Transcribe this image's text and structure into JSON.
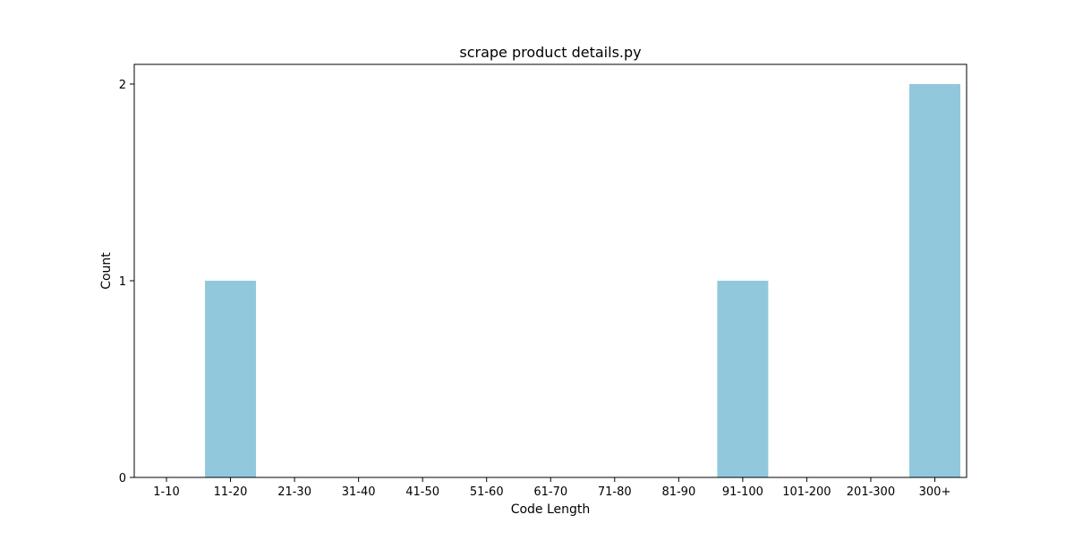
{
  "chart_data": {
    "type": "bar",
    "title": "scrape product details.py",
    "xlabel": "Code Length",
    "ylabel": "Count",
    "categories": [
      "1-10",
      "11-20",
      "21-30",
      "31-40",
      "41-50",
      "51-60",
      "61-70",
      "71-80",
      "81-90",
      "91-100",
      "101-200",
      "201-300",
      "300+"
    ],
    "values": [
      0,
      1,
      0,
      0,
      0,
      0,
      0,
      0,
      0,
      1,
      0,
      0,
      2
    ],
    "yticks": [
      "0",
      "1",
      "2"
    ],
    "ylim": [
      0,
      2.1
    ],
    "grid": false,
    "legend": "none",
    "bar_color": "#92c8dc"
  }
}
